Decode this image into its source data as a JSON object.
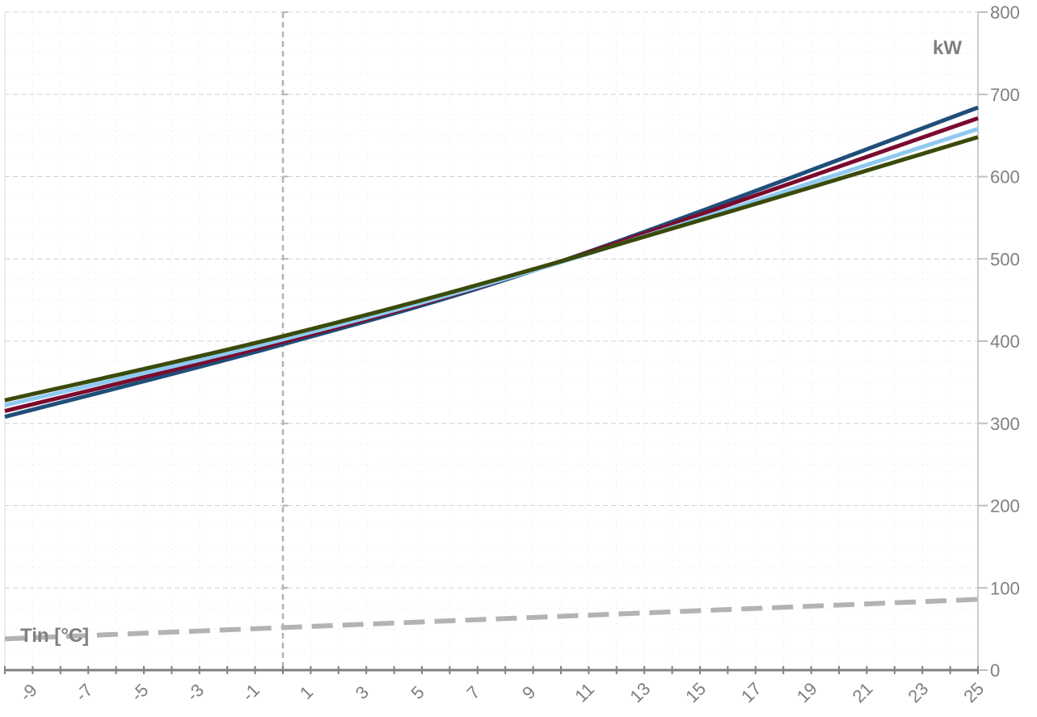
{
  "chart_data": {
    "type": "line",
    "xlabel": "Tin [°C]",
    "ylabel": "kW",
    "xlim": [
      -10,
      25
    ],
    "ylim": [
      0,
      800
    ],
    "x_ticks": [
      -9,
      -7,
      -5,
      -3,
      -1,
      1,
      3,
      5,
      7,
      9,
      11,
      13,
      15,
      17,
      19,
      21,
      23,
      25
    ],
    "x_tick_labels": [
      "-9",
      "-7",
      "-5",
      "-3",
      "-1",
      "1",
      "3",
      "5",
      "7",
      "9",
      "11",
      "13",
      "15",
      "17",
      "19",
      "21",
      "23",
      "25"
    ],
    "y_ticks": [
      0,
      100,
      200,
      300,
      400,
      500,
      600,
      700,
      800
    ],
    "y_tick_labels": [
      "0",
      "100",
      "200",
      "300",
      "400",
      "500",
      "600",
      "700",
      "800"
    ],
    "reference_x": 0,
    "grid": true,
    "series": [
      {
        "color": "#1f4e79",
        "points": [
          [
            -10,
            308
          ],
          [
            0,
            396
          ],
          [
            10,
            497
          ],
          [
            25,
            684
          ]
        ]
      },
      {
        "color": "#7b0a2e",
        "points": [
          [
            -10,
            315
          ],
          [
            0,
            399
          ],
          [
            10,
            497
          ],
          [
            25,
            671
          ]
        ]
      },
      {
        "color": "#8fc9ef",
        "points": [
          [
            -10,
            322
          ],
          [
            0,
            402
          ],
          [
            10,
            496
          ],
          [
            25,
            658
          ]
        ]
      },
      {
        "color": "#3a4a0a",
        "points": [
          [
            -10,
            328
          ],
          [
            0,
            406
          ],
          [
            10,
            497
          ],
          [
            25,
            648
          ]
        ]
      },
      {
        "color": "#b3b3b3",
        "dashed": true,
        "points": [
          [
            -10,
            38
          ],
          [
            25,
            86
          ]
        ]
      }
    ]
  }
}
